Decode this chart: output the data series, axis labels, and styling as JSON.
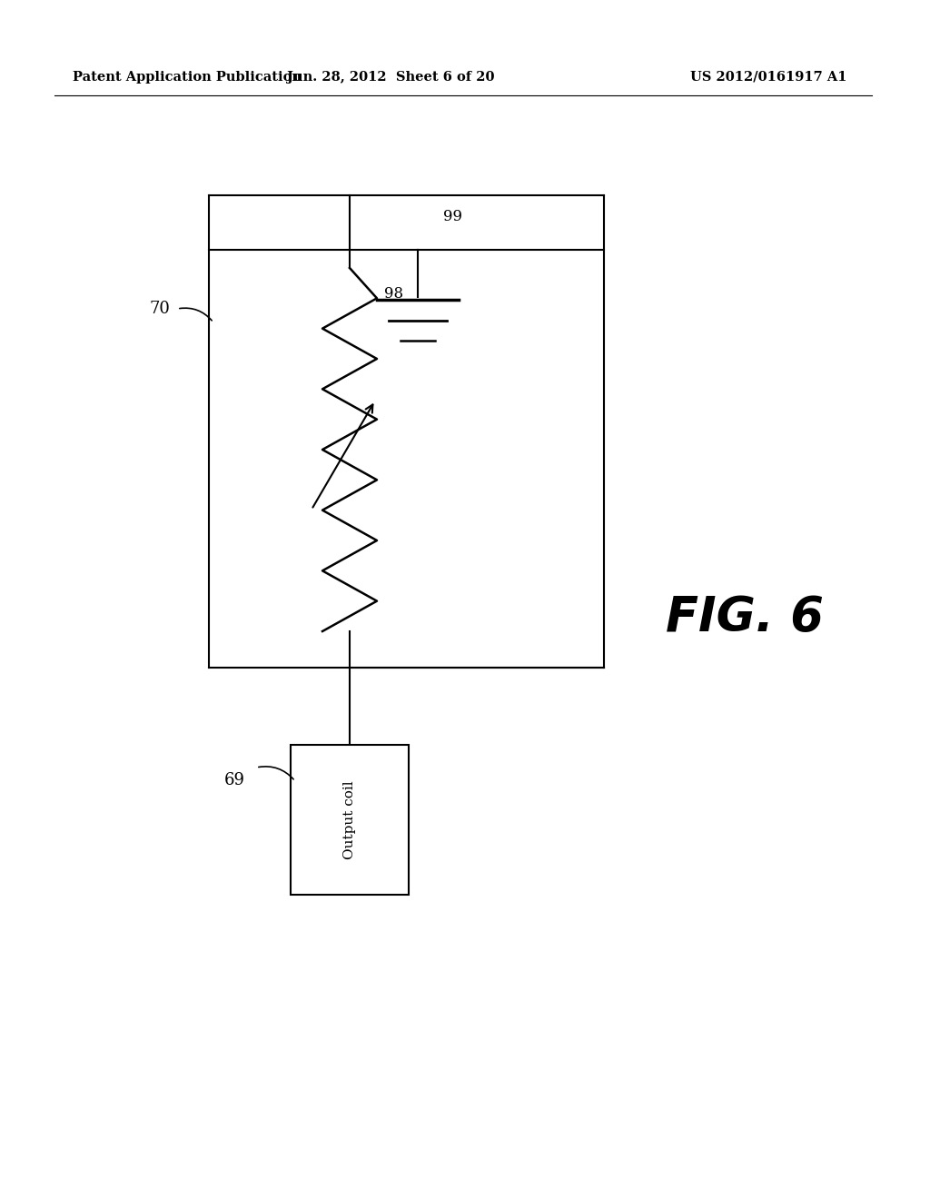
{
  "background_color": "#ffffff",
  "header_text": "Patent Application Publication",
  "header_date": "Jun. 28, 2012  Sheet 6 of 20",
  "header_patent": "US 2012/0161917 A1",
  "fig_label": "FIG. 6",
  "label_70": "70",
  "label_98": "98",
  "label_99": "99",
  "label_69": "69",
  "output_coil_text": "Output coil"
}
